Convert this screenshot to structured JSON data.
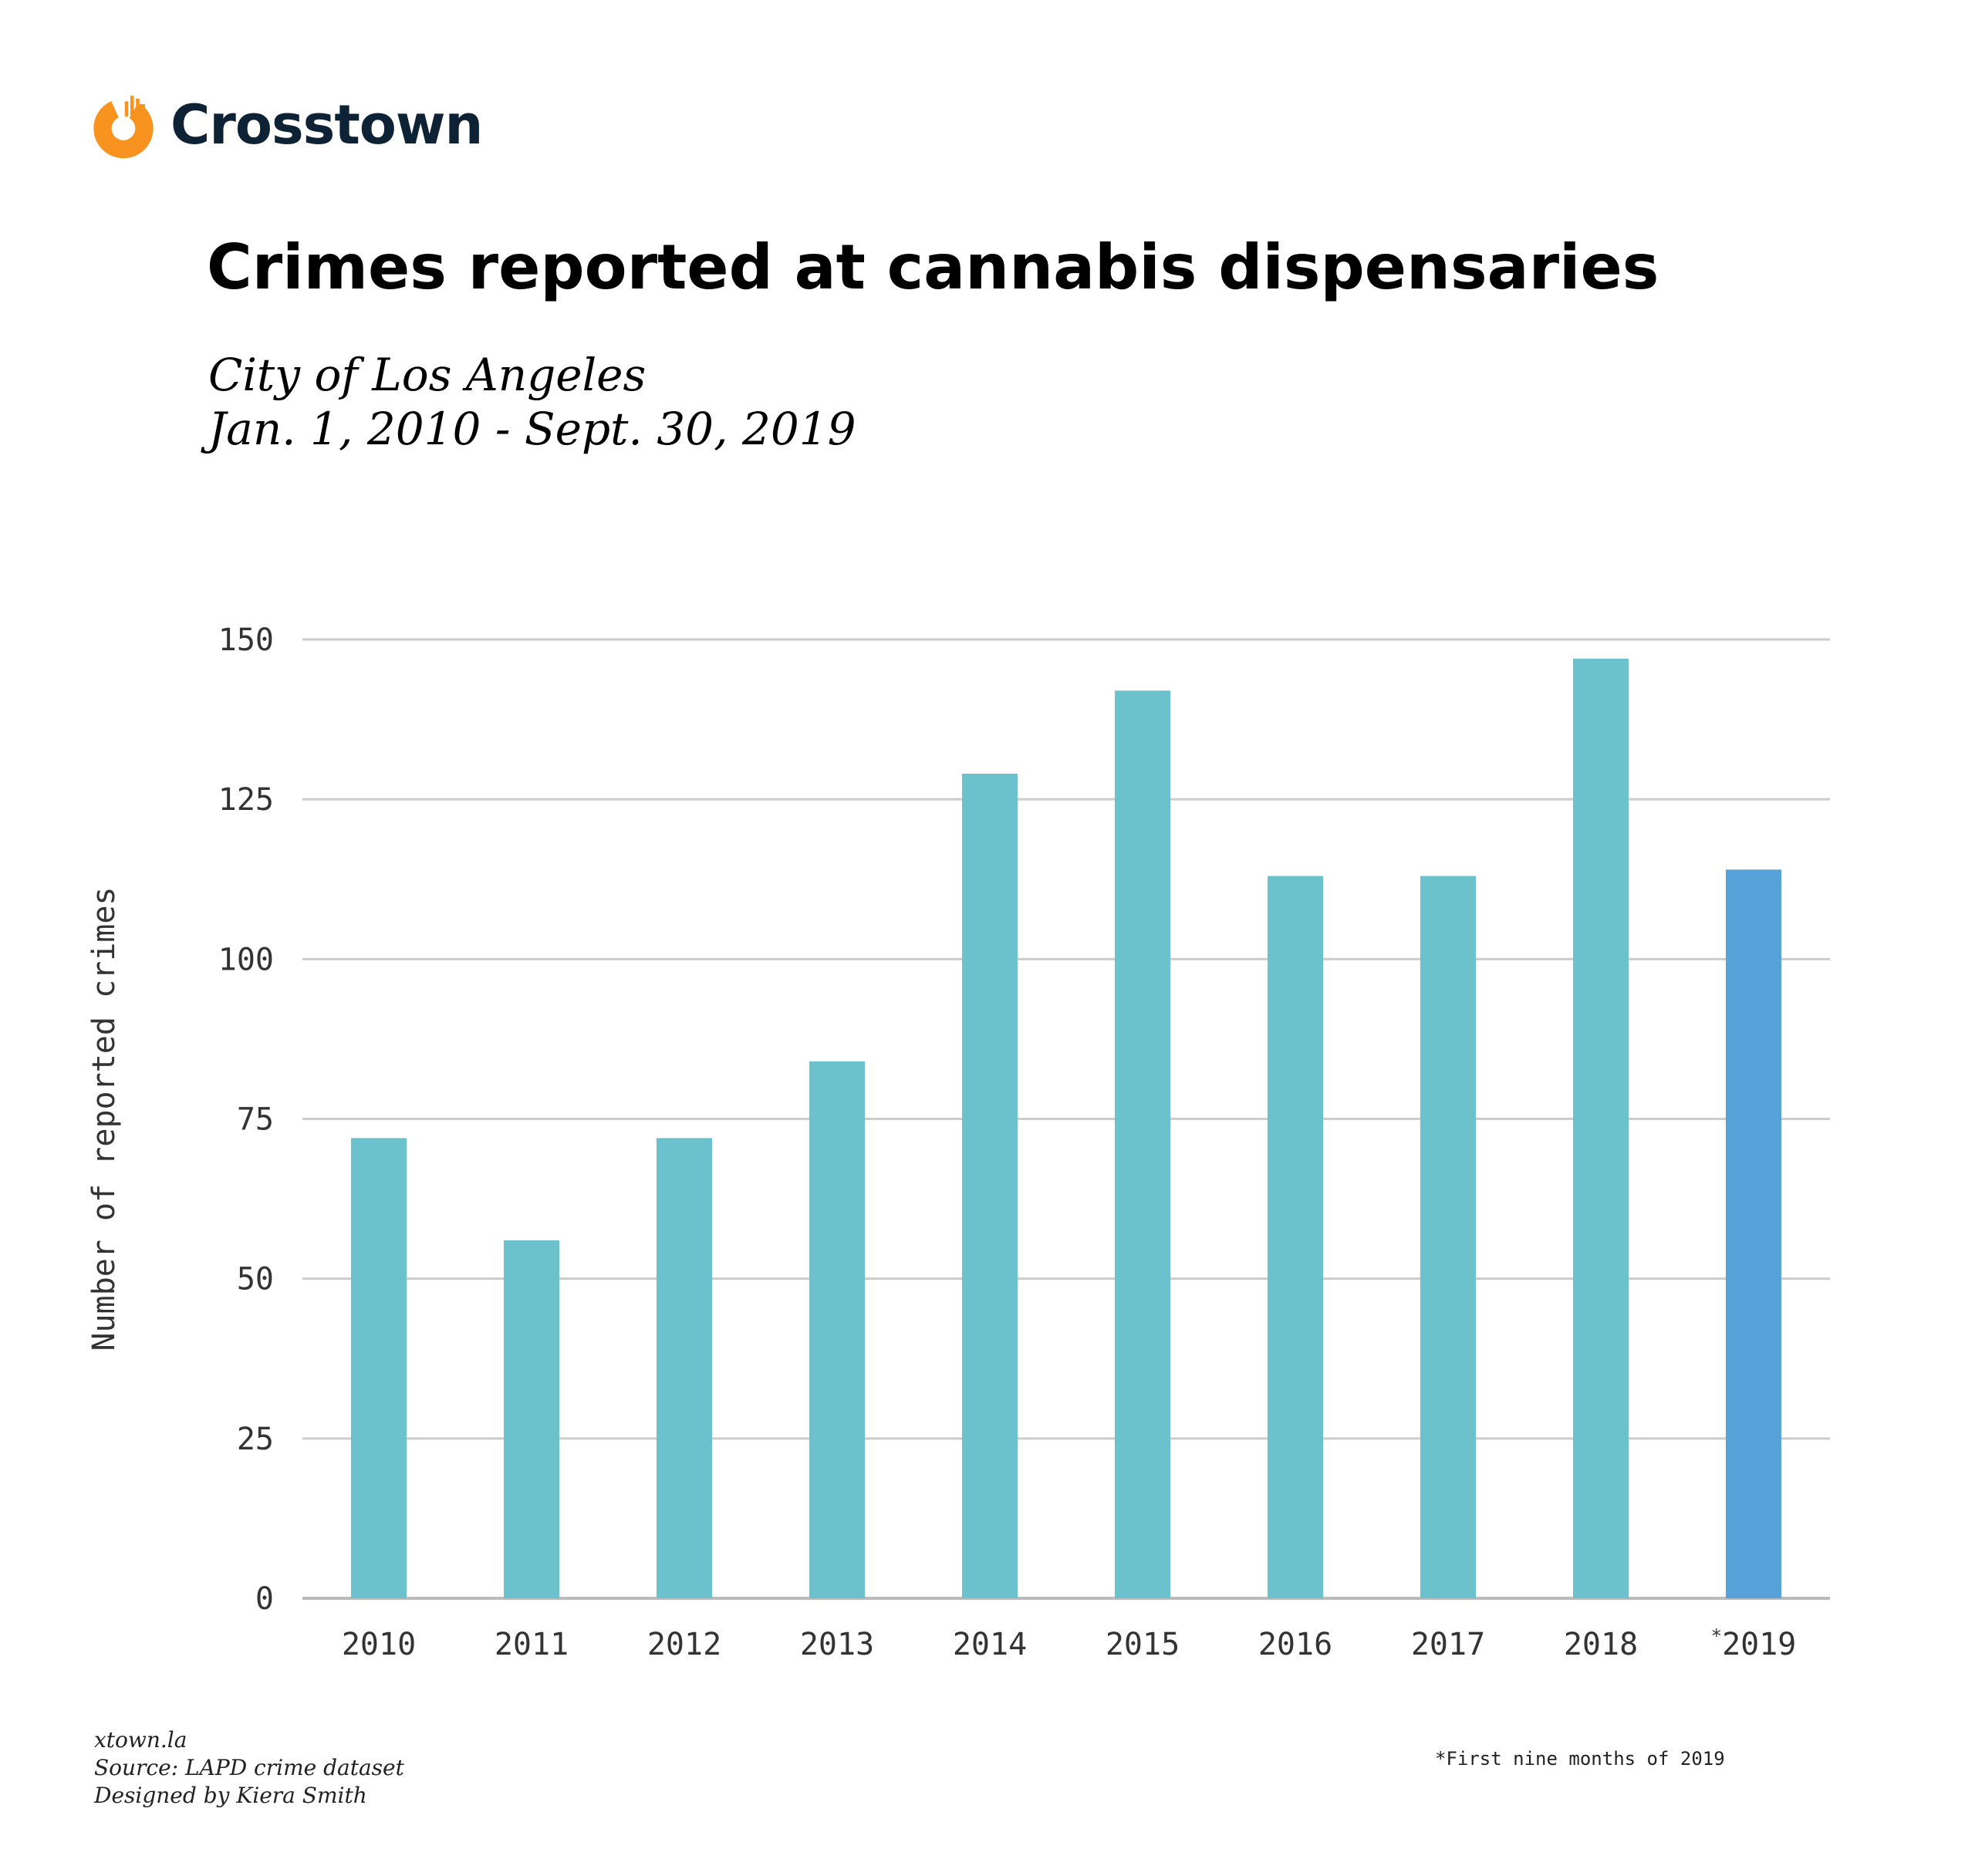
{
  "brand": {
    "name": "Crosstown",
    "logo_color": "#f7931e",
    "text_color": "#0e2236"
  },
  "header": {
    "title": "Crimes reported at cannabis dispensaries",
    "subtitle_line1": "City of Los Angeles",
    "subtitle_line2": "Jan. 1, 2010 - Sept. 30, 2019"
  },
  "footer": {
    "site": "xtown.la",
    "source": "Source: LAPD crime dataset",
    "designer": "Designed by Kiera Smith",
    "footnote": "*First nine months of 2019"
  },
  "chart_data": {
    "type": "bar",
    "categories": [
      "2010",
      "2011",
      "2012",
      "2013",
      "2014",
      "2015",
      "2016",
      "2017",
      "2018",
      "*2019"
    ],
    "values": [
      72,
      56,
      72,
      84,
      129,
      142,
      113,
      113,
      147,
      114
    ],
    "ylabel": "Number of reported crimes",
    "xlabel": "",
    "ylim": [
      0,
      150
    ],
    "yticks": [
      0,
      25,
      50,
      75,
      100,
      125,
      150
    ],
    "grid": true,
    "colors": {
      "default": "#6bc1cc",
      "highlight": "#57a3d9",
      "grid": "#cccccc",
      "tick_text": "#333333"
    },
    "highlight_index": 9
  }
}
